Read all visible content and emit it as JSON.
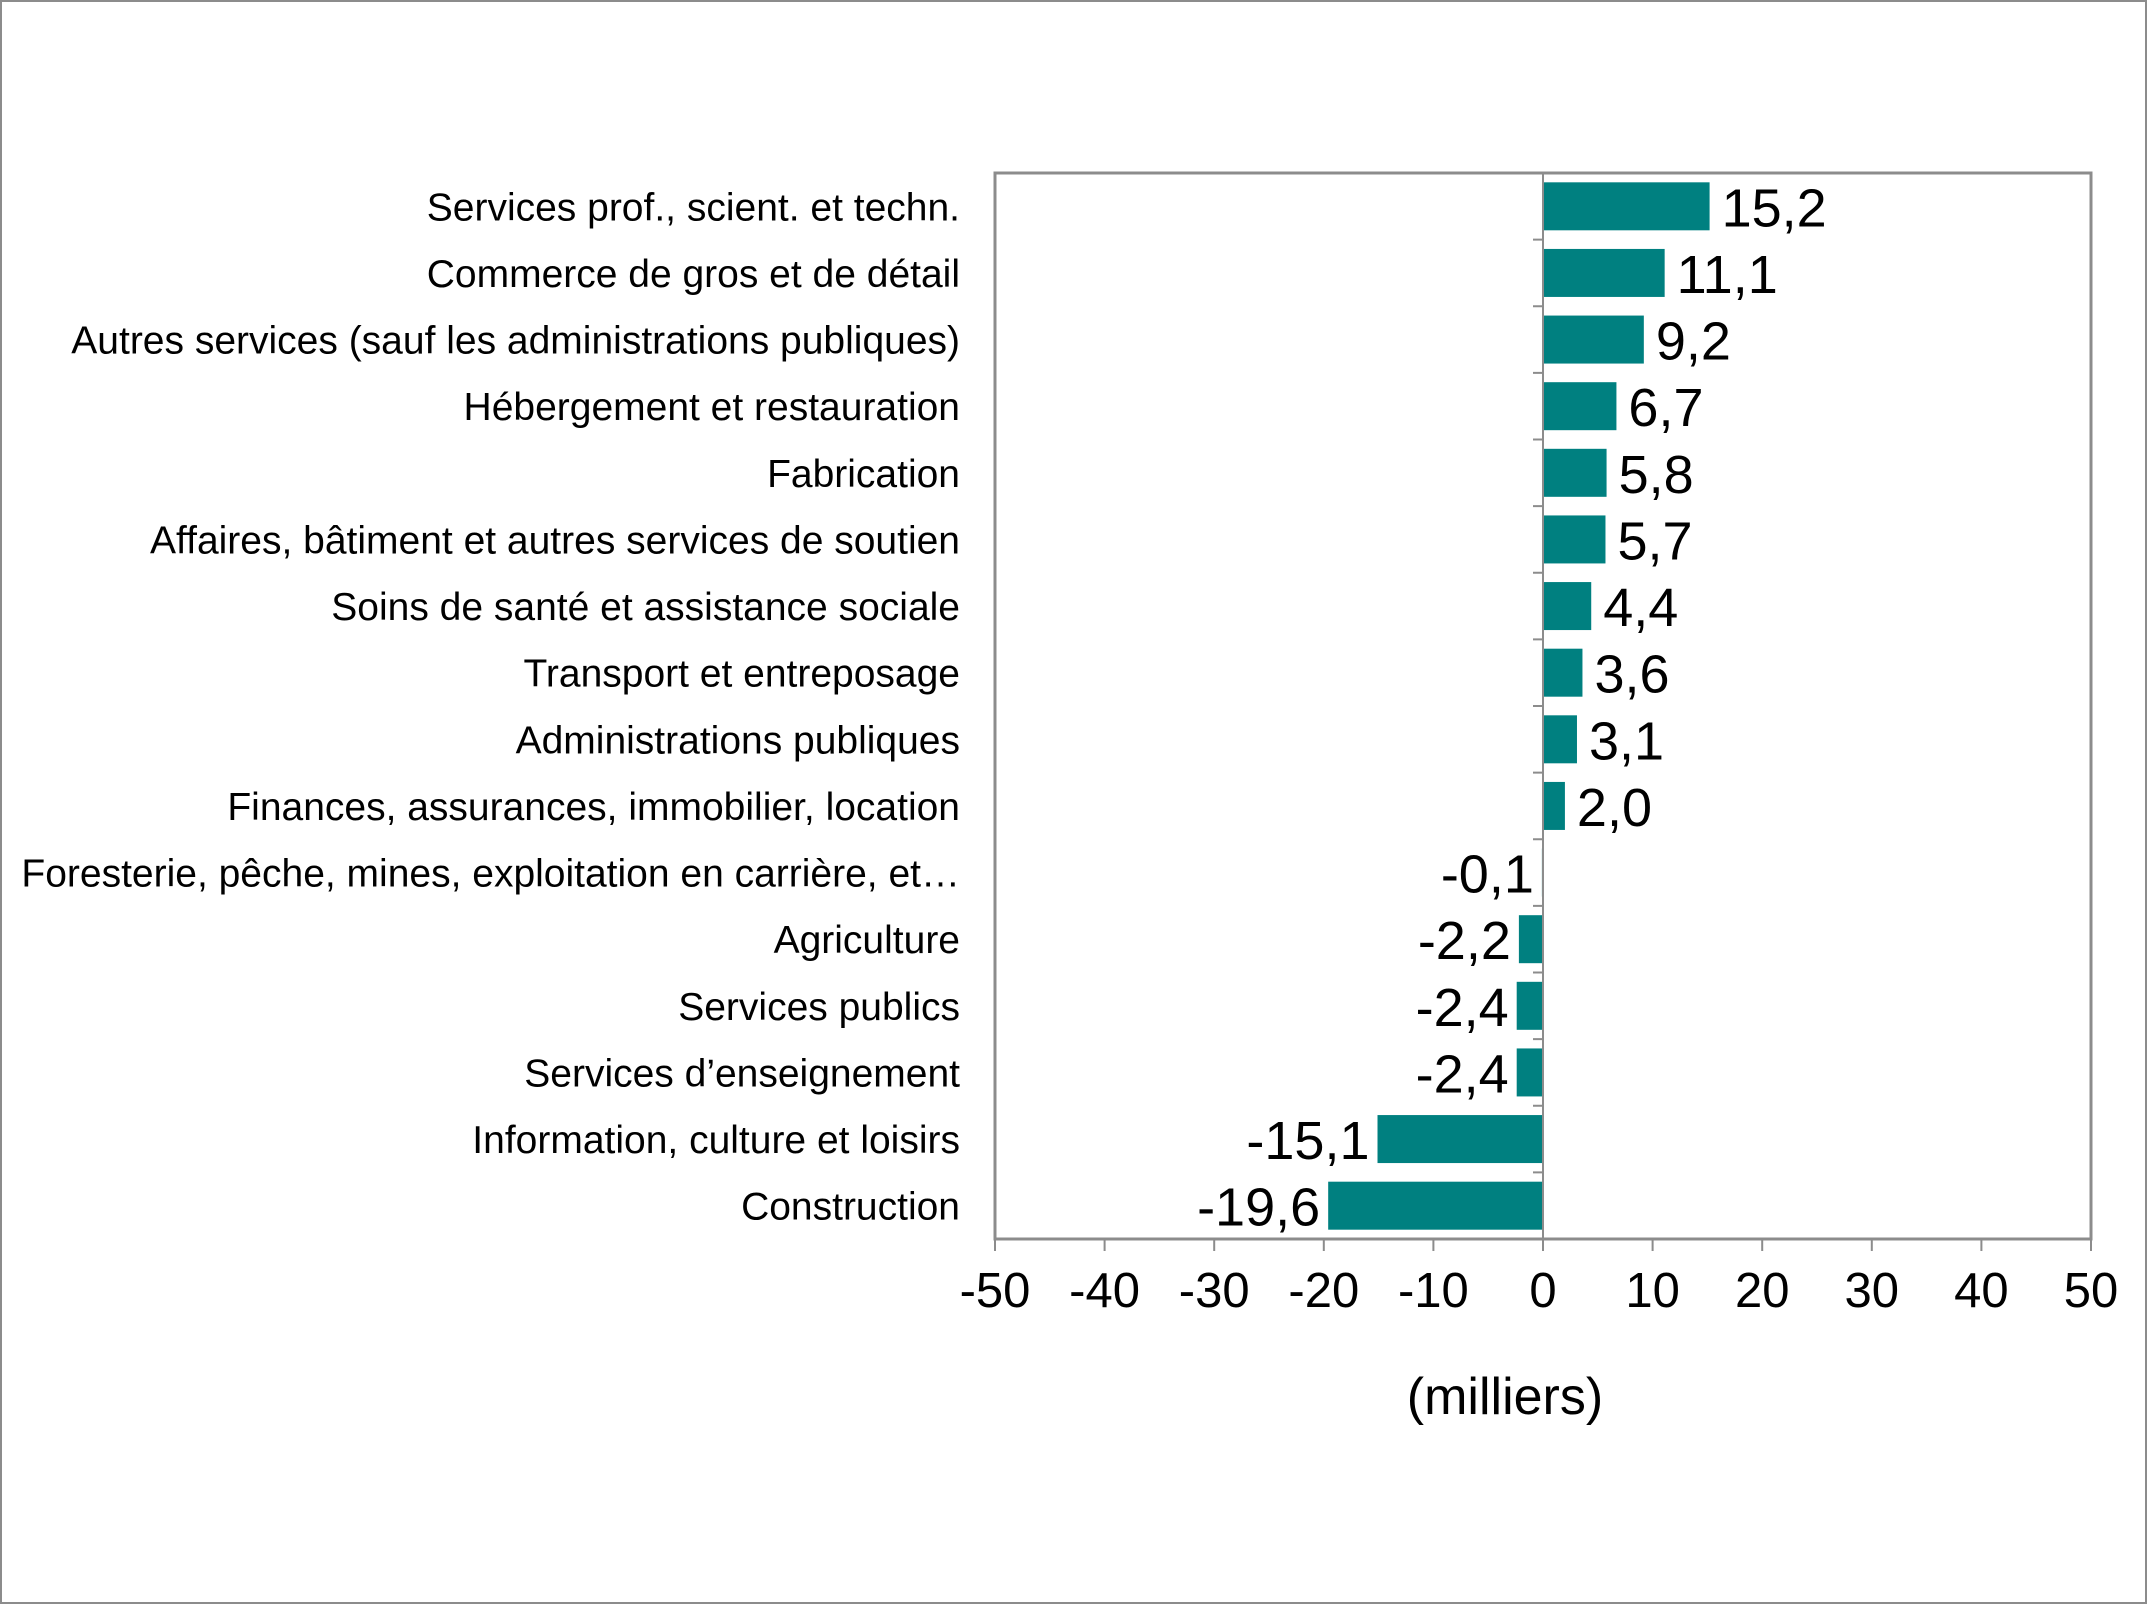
{
  "chart_data": {
    "type": "bar",
    "orientation": "horizontal",
    "title": "",
    "xlabel": "(milliers)",
    "ylabel": "",
    "xlim": [
      -50,
      50
    ],
    "xticks": [
      -50,
      -40,
      -30,
      -20,
      -10,
      0,
      10,
      20,
      30,
      40,
      50
    ],
    "grid": false,
    "legend": "none",
    "bar_color": "#008080",
    "categories": [
      "Services prof., scient. et techn.",
      "Commerce de gros et de détail",
      "Autres services (sauf les administrations publiques)",
      "Hébergement et restauration",
      "Fabrication",
      "Affaires, bâtiment et autres services de soutien",
      "Soins de santé et assistance sociale",
      "Transport et entreposage",
      "Administrations publiques",
      "Finances, assurances, immobilier, location",
      "Foresterie, pêche, mines, exploitation en carrière, et…",
      "Agriculture",
      "Services publics",
      "Services d’enseignement",
      "Information, culture et loisirs",
      "Construction"
    ],
    "values": [
      15.2,
      11.1,
      9.2,
      6.7,
      5.8,
      5.7,
      4.4,
      3.6,
      3.1,
      2.0,
      -0.1,
      -2.2,
      -2.4,
      -2.4,
      -15.1,
      -19.6
    ],
    "value_labels": [
      "15,2",
      "11,1",
      "9,2",
      "6,7",
      "5,8",
      "5,7",
      "4,4",
      "3,6",
      "3,1",
      "2,0",
      "-0,1",
      "-2,2",
      "-2,4",
      "-2,4",
      "-15,1",
      "-19,6"
    ]
  }
}
